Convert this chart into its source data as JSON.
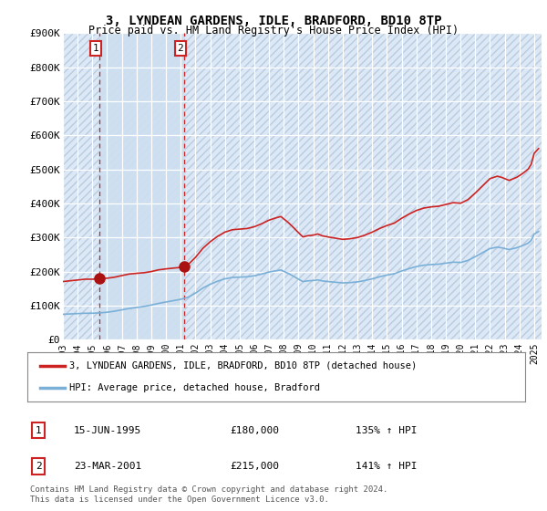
{
  "title": "3, LYNDEAN GARDENS, IDLE, BRADFORD, BD10 8TP",
  "subtitle": "Price paid vs. HM Land Registry's House Price Index (HPI)",
  "title_fontsize": 10,
  "subtitle_fontsize": 8.5,
  "background_color": "#ffffff",
  "plot_bg_color": "#dce8f5",
  "hatch_color": "#b8ccdf",
  "sale1_date": 1995.46,
  "sale1_price": 180000,
  "sale1_label": "1",
  "sale2_date": 2001.23,
  "sale2_price": 215000,
  "sale2_label": "2",
  "red_line_color": "#cc2222",
  "blue_line_color": "#7ab0d8",
  "sale_marker_color": "#aa1111",
  "dashed_line_color": "#cc2222",
  "ylabel_ticks": [
    "£0",
    "£100K",
    "£200K",
    "£300K",
    "£400K",
    "£500K",
    "£600K",
    "£700K",
    "£800K",
    "£900K"
  ],
  "ytick_values": [
    0,
    100000,
    200000,
    300000,
    400000,
    500000,
    600000,
    700000,
    800000,
    900000
  ],
  "xmin": 1993.0,
  "xmax": 2025.5,
  "ymin": 0,
  "ymax": 900000,
  "legend_label1": "3, LYNDEAN GARDENS, IDLE, BRADFORD, BD10 8TP (detached house)",
  "legend_label2": "HPI: Average price, detached house, Bradford",
  "table_row1": [
    "1",
    "15-JUN-1995",
    "£180,000",
    "135% ↑ HPI"
  ],
  "table_row2": [
    "2",
    "23-MAR-2001",
    "£215,000",
    "141% ↑ HPI"
  ],
  "footer": "Contains HM Land Registry data © Crown copyright and database right 2024.\nThis data is licensed under the Open Government Licence v3.0.",
  "shade_between_color": "#cddff0"
}
